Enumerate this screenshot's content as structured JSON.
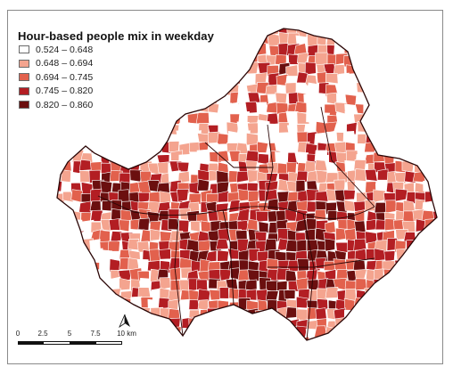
{
  "legend": {
    "title": "Hour-based people mix in weekday",
    "classes": [
      {
        "label": "0.524 – 0.648",
        "color": "#ffffff"
      },
      {
        "label": "0.648 – 0.694",
        "color": "#f4a48f"
      },
      {
        "label": "0.694 – 0.745",
        "color": "#e2614d"
      },
      {
        "label": "0.745 – 0.820",
        "color": "#b31e23"
      },
      {
        "label": "0.820 – 0.860",
        "color": "#6b0f0f"
      }
    ]
  },
  "scalebar": {
    "ticks": [
      "0",
      "2.5",
      "5",
      "7.5",
      "10 km"
    ]
  },
  "north_arrow": {
    "icon": "north-arrow-icon"
  },
  "district_border_color": "#3a0a0a"
}
